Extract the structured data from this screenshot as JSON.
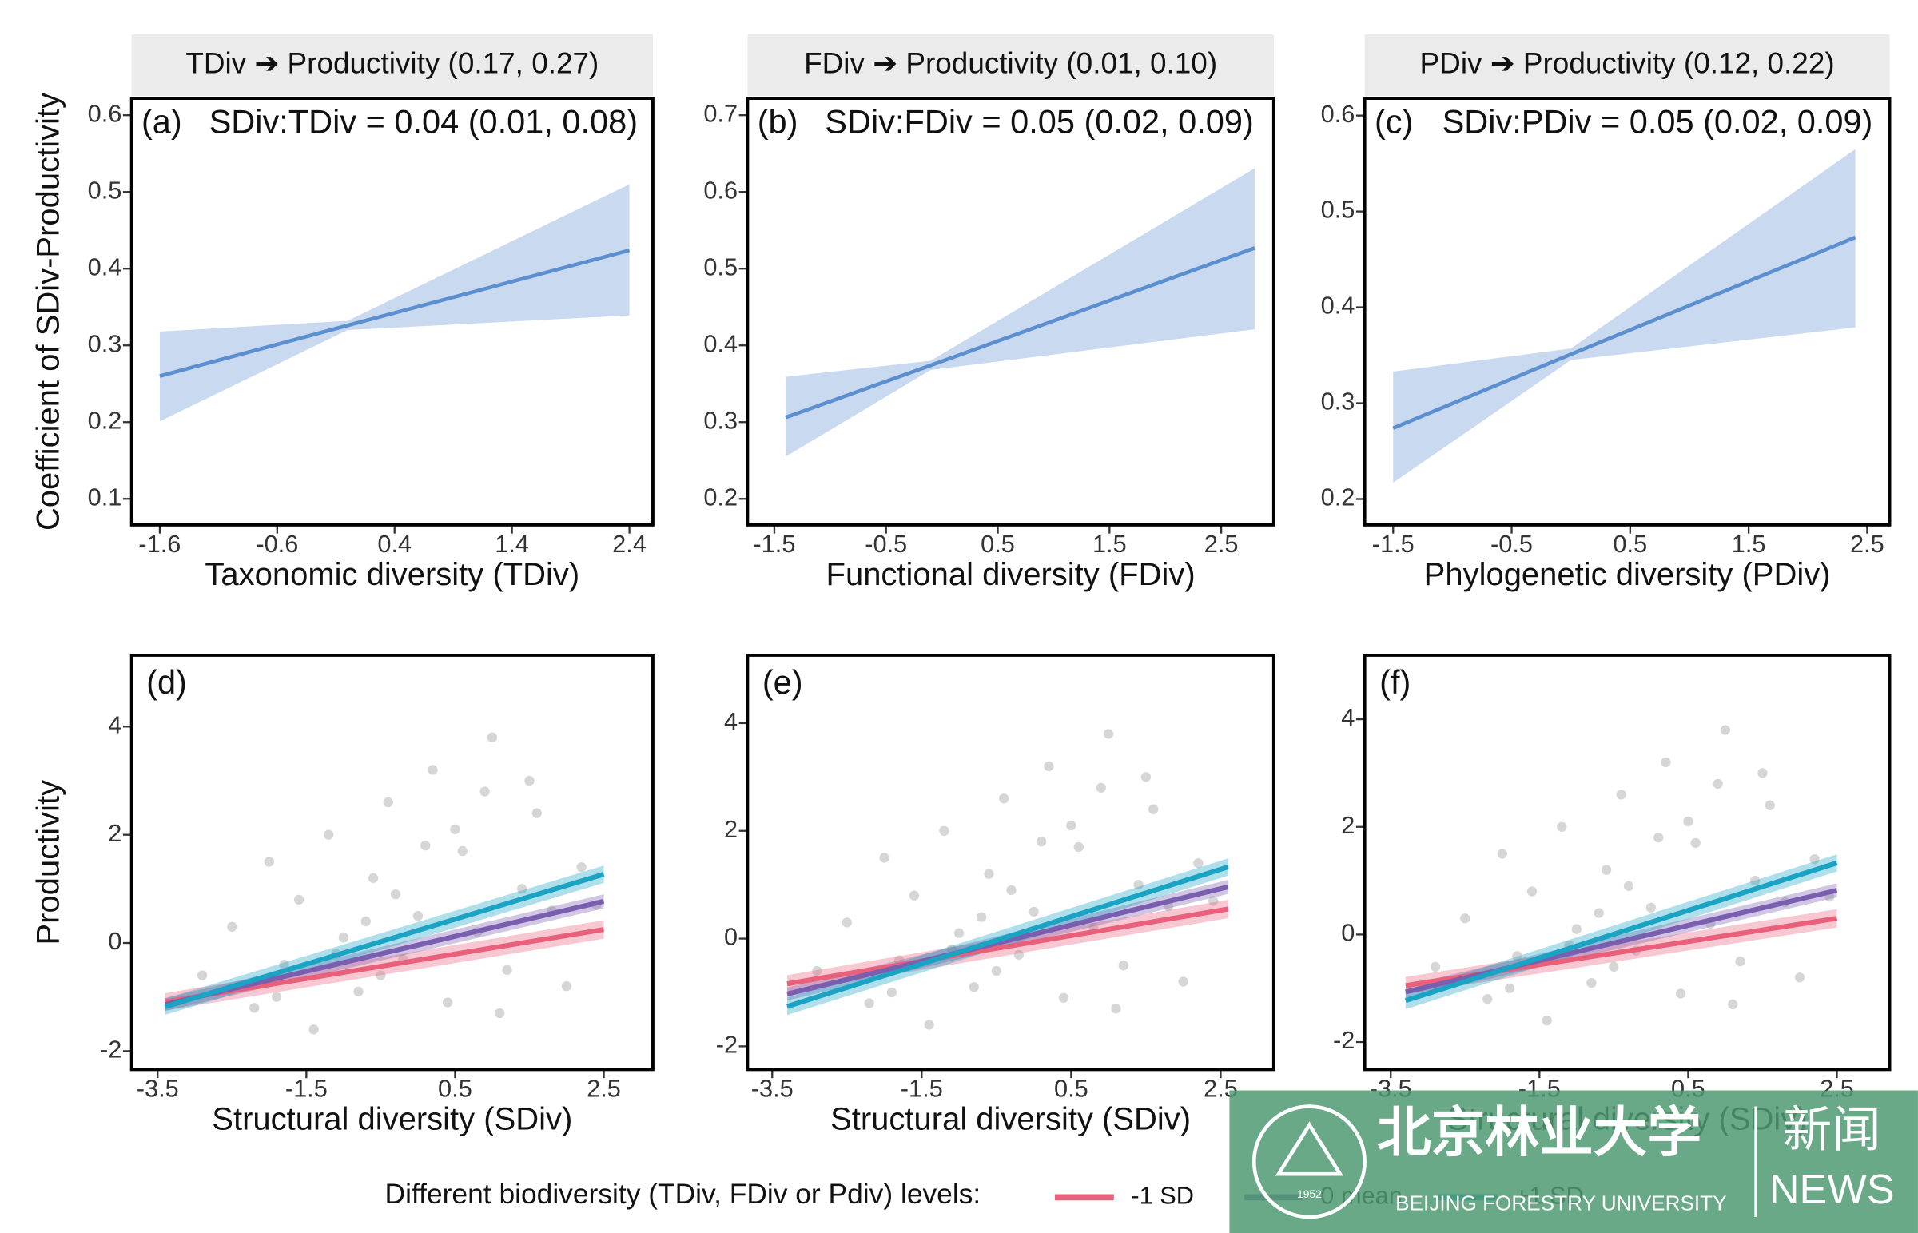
{
  "chart_data": [
    {
      "type": "line",
      "strip": "TDiv ➔ Productivity (0.17, 0.27)",
      "panel_label": "(a)",
      "annotation": "SDiv:TDiv = 0.04 (0.01, 0.08)",
      "x_label": "Taxonomic diversity (TDiv)",
      "y_label": "Coefficient of SDiv-Productivity",
      "xlim": [
        -1.84,
        2.6
      ],
      "ylim": [
        0.066,
        0.622
      ],
      "xticks": [
        -1.6,
        -0.6,
        0.4,
        1.4,
        2.4
      ],
      "yticks": [
        0.1,
        0.2,
        0.3,
        0.4,
        0.5,
        0.6
      ],
      "color": "#5b8fcf",
      "band_color": "#c9d9ef",
      "x": [
        -1.6,
        0.0,
        2.4
      ],
      "values": [
        0.26,
        0.326,
        0.424
      ],
      "lower": [
        0.201,
        0.32,
        0.339
      ],
      "upper": [
        0.318,
        0.332,
        0.51
      ]
    },
    {
      "type": "line",
      "strip": "FDiv ➔ Productivity (0.01, 0.10)",
      "panel_label": "(b)",
      "annotation": "SDiv:FDiv = 0.05 (0.02, 0.09)",
      "x_label": "Functional diversity (FDiv)",
      "xlim": [
        -1.74,
        2.97
      ],
      "ylim": [
        0.166,
        0.722
      ],
      "xticks": [
        -1.5,
        -0.5,
        0.5,
        1.5,
        2.5
      ],
      "yticks": [
        0.2,
        0.3,
        0.4,
        0.5,
        0.6,
        0.7
      ],
      "color": "#5b8fcf",
      "band_color": "#c9d9ef",
      "x": [
        -1.4,
        -0.1,
        2.8
      ],
      "values": [
        0.306,
        0.374,
        0.527
      ],
      "lower": [
        0.255,
        0.368,
        0.421
      ],
      "upper": [
        0.359,
        0.38,
        0.631
      ]
    },
    {
      "type": "line",
      "strip": "PDiv ➔ Productivity (0.12, 0.22)",
      "panel_label": "(c)",
      "annotation": "SDiv:PDiv = 0.05 (0.02, 0.09)",
      "x_label": "Phylogenetic diversity (PDiv)",
      "xlim": [
        -1.74,
        2.69
      ],
      "ylim": [
        0.173,
        0.618
      ],
      "xticks": [
        -1.5,
        -0.5,
        0.5,
        1.5,
        2.5
      ],
      "yticks": [
        0.2,
        0.3,
        0.4,
        0.5,
        0.6
      ],
      "color": "#5b8fcf",
      "band_color": "#c9d9ef",
      "x": [
        -1.5,
        0.0,
        2.4
      ],
      "values": [
        0.274,
        0.351,
        0.473
      ],
      "lower": [
        0.217,
        0.345,
        0.379
      ],
      "upper": [
        0.333,
        0.357,
        0.565
      ]
    },
    {
      "type": "scatter",
      "panel_label": "(d)",
      "x_label": "Structural diversity (SDiv)",
      "y_label": "Productivity",
      "xlim": [
        -3.85,
        3.16
      ],
      "ylim": [
        -2.34,
        5.32
      ],
      "xticks": [
        -3.5,
        -1.5,
        0.5,
        2.5
      ],
      "yticks": [
        -2,
        0,
        2,
        4
      ],
      "point_color": "#c8c8c8",
      "points": {
        "x": [
          -2.9,
          -2.5,
          -2.2,
          -2.0,
          -1.8,
          -1.6,
          -1.4,
          -1.2,
          -1.0,
          -0.8,
          -0.6,
          -0.4,
          -0.2,
          0,
          0.2,
          0.4,
          0.6,
          0.8,
          1.0,
          1.2,
          1.4,
          1.6,
          1.8,
          2.0,
          2.2,
          -1.1,
          -0.3,
          0.5,
          1.1,
          0.1,
          -0.7,
          1.5,
          2.4,
          -1.9,
          0.9,
          -0.5
        ],
        "y": [
          -0.6,
          0.3,
          -1.2,
          1.5,
          -0.4,
          0.8,
          -1.6,
          2.0,
          0.1,
          -0.9,
          1.2,
          2.6,
          -0.3,
          0.5,
          3.2,
          -1.1,
          1.7,
          0.2,
          3.8,
          -0.5,
          1.0,
          2.4,
          0.6,
          -0.8,
          1.4,
          -0.2,
          0.9,
          2.1,
          -1.3,
          1.8,
          0.4,
          3.0,
          0.7,
          -1.0,
          2.8,
          -0.6
        ]
      },
      "series": [
        {
          "name": "-1 SD",
          "color": "#e8607a",
          "x": [
            -3.4,
            2.5
          ],
          "values": [
            -1.09,
            0.25
          ],
          "lower": [
            -1.25,
            0.08
          ],
          "upper": [
            -0.93,
            0.42
          ]
        },
        {
          "name": "0 mean",
          "color": "#7a5fb0",
          "x": [
            -3.4,
            2.5
          ],
          "values": [
            -1.14,
            0.77
          ],
          "lower": [
            -1.26,
            0.64
          ],
          "upper": [
            -1.02,
            0.9
          ]
        },
        {
          "name": "+1 SD",
          "color": "#1aa3c3",
          "x": [
            -3.4,
            2.5
          ],
          "values": [
            -1.18,
            1.27
          ],
          "lower": [
            -1.33,
            1.11
          ],
          "upper": [
            -1.03,
            1.43
          ]
        }
      ]
    },
    {
      "type": "scatter",
      "panel_label": "(e)",
      "x_label": "Structural diversity (SDiv)",
      "xlim": [
        -3.83,
        3.21
      ],
      "ylim": [
        -2.43,
        5.26
      ],
      "xticks": [
        -3.5,
        -1.5,
        0.5,
        2.5
      ],
      "yticks": [
        -2,
        0,
        2,
        4
      ],
      "point_color": "#c8c8c8",
      "points": {
        "x": [
          -2.9,
          -2.5,
          -2.2,
          -2.0,
          -1.8,
          -1.6,
          -1.4,
          -1.2,
          -1.0,
          -0.8,
          -0.6,
          -0.4,
          -0.2,
          0,
          0.2,
          0.4,
          0.6,
          0.8,
          1.0,
          1.2,
          1.4,
          1.6,
          1.8,
          2.0,
          2.2,
          -1.1,
          -0.3,
          0.5,
          1.1,
          0.1,
          -0.7,
          1.5,
          2.4,
          -1.9,
          0.9,
          -0.5
        ],
        "y": [
          -0.6,
          0.3,
          -1.2,
          1.5,
          -0.4,
          0.8,
          -1.6,
          2.0,
          0.1,
          -0.9,
          1.2,
          2.6,
          -0.3,
          0.5,
          3.2,
          -1.1,
          1.7,
          0.2,
          3.8,
          -0.5,
          1.0,
          2.4,
          0.6,
          -0.8,
          1.4,
          -0.2,
          0.9,
          2.1,
          -1.3,
          1.8,
          0.4,
          3.0,
          0.7,
          -1.0,
          2.8,
          -0.6
        ]
      },
      "series": [
        {
          "name": "-1 SD",
          "color": "#e8607a",
          "x": [
            -3.3,
            2.6
          ],
          "values": [
            -0.84,
            0.55
          ],
          "lower": [
            -1.0,
            0.38
          ],
          "upper": [
            -0.68,
            0.72
          ]
        },
        {
          "name": "0 mean",
          "color": "#7a5fb0",
          "x": [
            -3.3,
            2.6
          ],
          "values": [
            -1.03,
            0.96
          ],
          "lower": [
            -1.15,
            0.83
          ],
          "upper": [
            -0.91,
            1.09
          ]
        },
        {
          "name": "+1 SD",
          "color": "#1aa3c3",
          "x": [
            -3.3,
            2.6
          ],
          "values": [
            -1.26,
            1.33
          ],
          "lower": [
            -1.42,
            1.17
          ],
          "upper": [
            -1.1,
            1.49
          ]
        }
      ]
    },
    {
      "type": "scatter",
      "panel_label": "(f)",
      "x_label": "Structural diversity (SDiv)",
      "xlim": [
        -3.85,
        3.21
      ],
      "ylim": [
        -2.51,
        5.19
      ],
      "xticks": [
        -3.5,
        -1.5,
        0.5,
        2.5
      ],
      "yticks": [
        -2,
        0,
        2,
        4
      ],
      "point_color": "#c8c8c8",
      "points": {
        "x": [
          -2.9,
          -2.5,
          -2.2,
          -2.0,
          -1.8,
          -1.6,
          -1.4,
          -1.2,
          -1.0,
          -0.8,
          -0.6,
          -0.4,
          -0.2,
          0,
          0.2,
          0.4,
          0.6,
          0.8,
          1.0,
          1.2,
          1.4,
          1.6,
          1.8,
          2.0,
          2.2,
          -1.1,
          -0.3,
          0.5,
          1.1,
          0.1,
          -0.7,
          1.5,
          2.4,
          -1.9,
          0.9,
          -0.5
        ],
        "y": [
          -0.6,
          0.3,
          -1.2,
          1.5,
          -0.4,
          0.8,
          -1.6,
          2.0,
          0.1,
          -0.9,
          1.2,
          2.6,
          -0.3,
          0.5,
          3.2,
          -1.1,
          1.7,
          0.2,
          3.8,
          -0.5,
          1.0,
          2.4,
          0.6,
          -0.8,
          1.4,
          -0.2,
          0.9,
          2.1,
          -1.3,
          1.8,
          0.4,
          3.0,
          0.7,
          -1.0,
          2.8,
          -0.6
        ]
      },
      "series": [
        {
          "name": "-1 SD",
          "color": "#e8607a",
          "x": [
            -3.3,
            2.5
          ],
          "values": [
            -0.95,
            0.3
          ],
          "lower": [
            -1.11,
            0.13
          ],
          "upper": [
            -0.79,
            0.47
          ]
        },
        {
          "name": "0 mean",
          "color": "#7a5fb0",
          "x": [
            -3.3,
            2.5
          ],
          "values": [
            -1.07,
            0.82
          ],
          "lower": [
            -1.19,
            0.69
          ],
          "upper": [
            -0.95,
            0.95
          ]
        },
        {
          "name": "+1 SD",
          "color": "#1aa3c3",
          "x": [
            -3.3,
            2.5
          ],
          "values": [
            -1.23,
            1.33
          ],
          "lower": [
            -1.39,
            1.17
          ],
          "upper": [
            -1.07,
            1.49
          ]
        }
      ]
    }
  ],
  "legend": {
    "title": "Different biodiversity (TDiv, FDiv or Pdiv) levels:"
  },
  "watermark": {
    "name_cn": "北京林业大学",
    "name_en": "BEIJING FORESTRY UNIVERSITY",
    "tag_cn": "新闻",
    "tag_en": "NEWS",
    "year": "1952"
  }
}
